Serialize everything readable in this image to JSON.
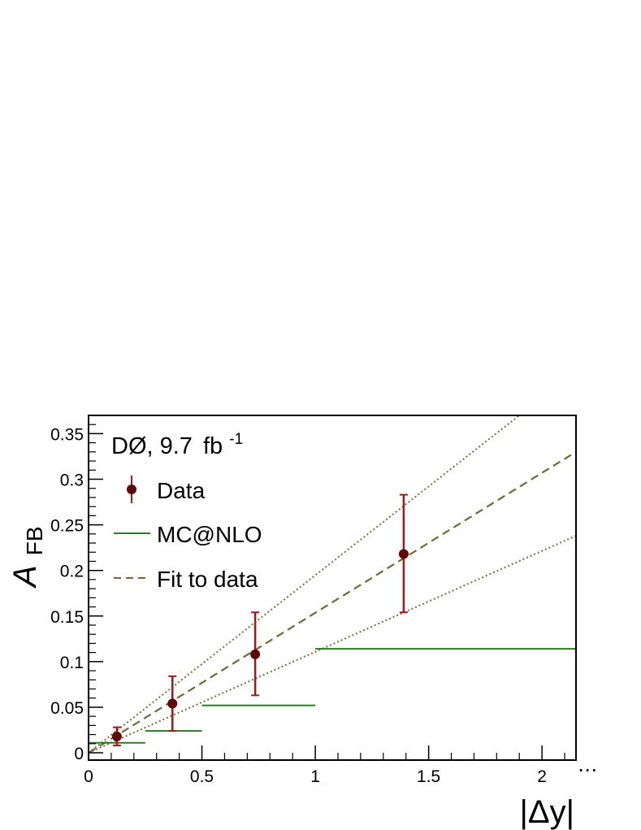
{
  "chart_data": {
    "type": "scatter",
    "title": "DØ, 9.7 fb-1",
    "experiment_label": "DØ, 9.7",
    "luminosity_unit": "fb",
    "luminosity_exponent": "-1",
    "xlabel": "|Δy|",
    "ylabel_main": "A",
    "ylabel_sub": "FB",
    "xlim": [
      0,
      2.15
    ],
    "ylim": [
      -0.008,
      0.37
    ],
    "x_ticks": [
      0,
      0.5,
      1,
      1.5,
      2
    ],
    "x_tick_labels": [
      "0",
      "0.5",
      "1",
      "1.5",
      "2"
    ],
    "x_ellipsis": "⋯",
    "y_ticks": [
      0,
      0.05,
      0.1,
      0.15,
      0.2,
      0.25,
      0.3,
      0.35
    ],
    "y_tick_labels": [
      "0",
      "0.05",
      "0.1",
      "0.15",
      "0.2",
      "0.25",
      "0.3",
      "0.35"
    ],
    "legend_position": "top-left",
    "series": [
      {
        "name": "Data",
        "kind": "points",
        "color": "#5c0a0a",
        "error_color": "#9b1b1b",
        "x": [
          0.125,
          0.37,
          0.735,
          1.39
        ],
        "y": [
          0.018,
          0.054,
          0.108,
          0.218
        ],
        "y_low": [
          0.008,
          0.024,
          0.063,
          0.154
        ],
        "y_high": [
          0.028,
          0.084,
          0.154,
          0.283
        ]
      },
      {
        "name": "MC@NLO",
        "kind": "step",
        "color": "#2a7a2a",
        "bins": [
          {
            "x0": 0,
            "x1": 0.25,
            "y": 0.011
          },
          {
            "x0": 0.25,
            "x1": 0.5,
            "y": 0.024
          },
          {
            "x0": 0.5,
            "x1": 1.0,
            "y": 0.052
          },
          {
            "x0": 1.0,
            "x1": 2.15,
            "y": 0.114
          }
        ]
      },
      {
        "name": "Fit to data",
        "kind": "line",
        "color": "#6b6b3a",
        "dash": "dashed",
        "x": [
          0,
          2.15
        ],
        "y": [
          0,
          0.33
        ]
      },
      {
        "kind": "band",
        "color": "#7a6e3c",
        "dash": "dotted",
        "upper": {
          "x": [
            0,
            1.9
          ],
          "y": [
            0,
            0.37
          ]
        },
        "lower": {
          "x": [
            0,
            2.15
          ],
          "y": [
            0,
            0.238
          ]
        }
      }
    ]
  }
}
